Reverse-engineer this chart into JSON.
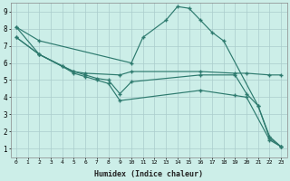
{
  "xlabel": "Humidex (Indice chaleur)",
  "bg_color": "#cceee8",
  "grid_color": "#aacccc",
  "line_color": "#2d7a6e",
  "xlim": [
    -0.5,
    23.5
  ],
  "ylim": [
    0.5,
    9.5
  ],
  "xticks": [
    0,
    1,
    2,
    3,
    4,
    5,
    6,
    7,
    8,
    9,
    10,
    11,
    12,
    13,
    14,
    15,
    16,
    17,
    18,
    19,
    20,
    21,
    22,
    23
  ],
  "yticks": [
    1,
    2,
    3,
    4,
    5,
    6,
    7,
    8,
    9
  ],
  "lines": [
    {
      "x": [
        0,
        2,
        10,
        11,
        13,
        14,
        15,
        16,
        17,
        18,
        21,
        22,
        23
      ],
      "y": [
        8.1,
        7.3,
        6.0,
        7.5,
        8.5,
        9.3,
        9.2,
        8.5,
        7.8,
        7.3,
        3.5,
        1.7,
        1.1
      ]
    },
    {
      "x": [
        0,
        2,
        5,
        6,
        9,
        10,
        16,
        19,
        20,
        22,
        23
      ],
      "y": [
        8.1,
        6.5,
        5.5,
        5.4,
        5.3,
        5.5,
        5.5,
        5.4,
        5.4,
        5.3,
        5.3
      ]
    },
    {
      "x": [
        0,
        2,
        4,
        5,
        6,
        7,
        8,
        9,
        10,
        16,
        19,
        20,
        21,
        22,
        23
      ],
      "y": [
        7.5,
        6.5,
        5.8,
        5.5,
        5.3,
        5.1,
        5.0,
        4.2,
        4.9,
        5.3,
        5.3,
        4.2,
        3.5,
        1.6,
        1.1
      ]
    },
    {
      "x": [
        0,
        2,
        4,
        5,
        6,
        7,
        8,
        9,
        16,
        19,
        20,
        22,
        23
      ],
      "y": [
        7.5,
        6.5,
        5.8,
        5.4,
        5.2,
        5.0,
        4.8,
        3.8,
        4.4,
        4.1,
        4.0,
        1.5,
        1.1
      ]
    }
  ]
}
